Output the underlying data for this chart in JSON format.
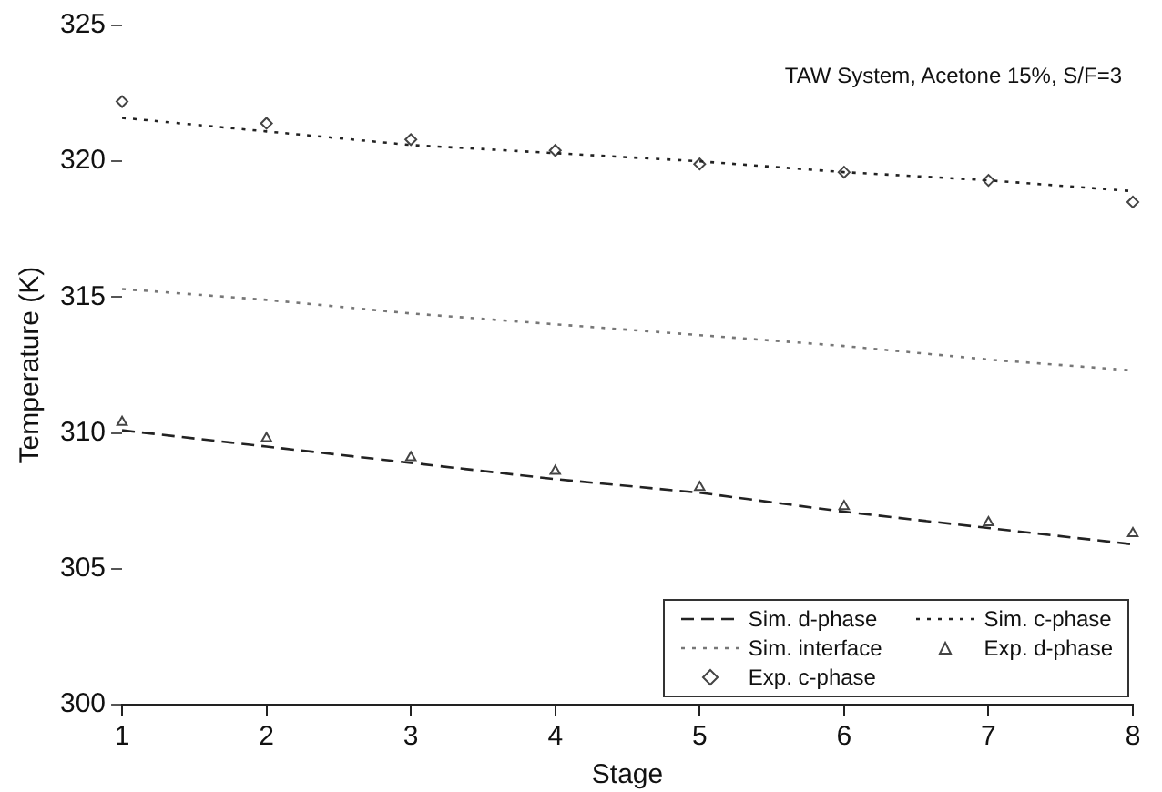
{
  "chart_data": {
    "type": "line",
    "xlabel": "Stage",
    "ylabel": "Temperature (K)",
    "annotations": [
      "TAW System, Acetone 15%, S/F=3"
    ],
    "x": [
      1,
      2,
      3,
      4,
      5,
      6,
      7,
      8
    ],
    "xlim": [
      1,
      8
    ],
    "xticks": [
      1,
      2,
      3,
      4,
      5,
      6,
      7,
      8
    ],
    "ylim": [
      300,
      325
    ],
    "yticks": [
      300,
      305,
      310,
      315,
      320,
      325
    ],
    "grid": false,
    "legend": "bottom right",
    "series": [
      {
        "name": "Sim. d-phase",
        "type": "line",
        "color": "#222222",
        "line_style": "dashed",
        "marker": "none",
        "values": [
          310.1,
          309.5,
          308.9,
          308.3,
          307.8,
          307.1,
          306.5,
          305.9
        ]
      },
      {
        "name": "Sim. c-phase",
        "type": "line",
        "color": "#222222",
        "line_style": "dotted",
        "marker": "none",
        "values": [
          321.6,
          321.1,
          320.6,
          320.3,
          320.0,
          319.6,
          319.3,
          318.9
        ]
      },
      {
        "name": "Sim. interface",
        "type": "line",
        "color": "#777777",
        "line_style": "dotted",
        "marker": "none",
        "values": [
          315.3,
          314.9,
          314.4,
          314.0,
          313.6,
          313.2,
          312.7,
          312.3
        ]
      },
      {
        "name": "Exp. d-phase",
        "type": "scatter",
        "color": "#444444",
        "marker": "triangle",
        "values": [
          310.4,
          309.8,
          309.1,
          308.6,
          308.0,
          307.3,
          306.7,
          306.3
        ]
      },
      {
        "name": "Exp. c-phase",
        "type": "scatter",
        "color": "#444444",
        "marker": "diamond",
        "values": [
          322.2,
          321.4,
          320.8,
          320.4,
          319.9,
          319.6,
          319.3,
          318.5
        ]
      }
    ]
  }
}
